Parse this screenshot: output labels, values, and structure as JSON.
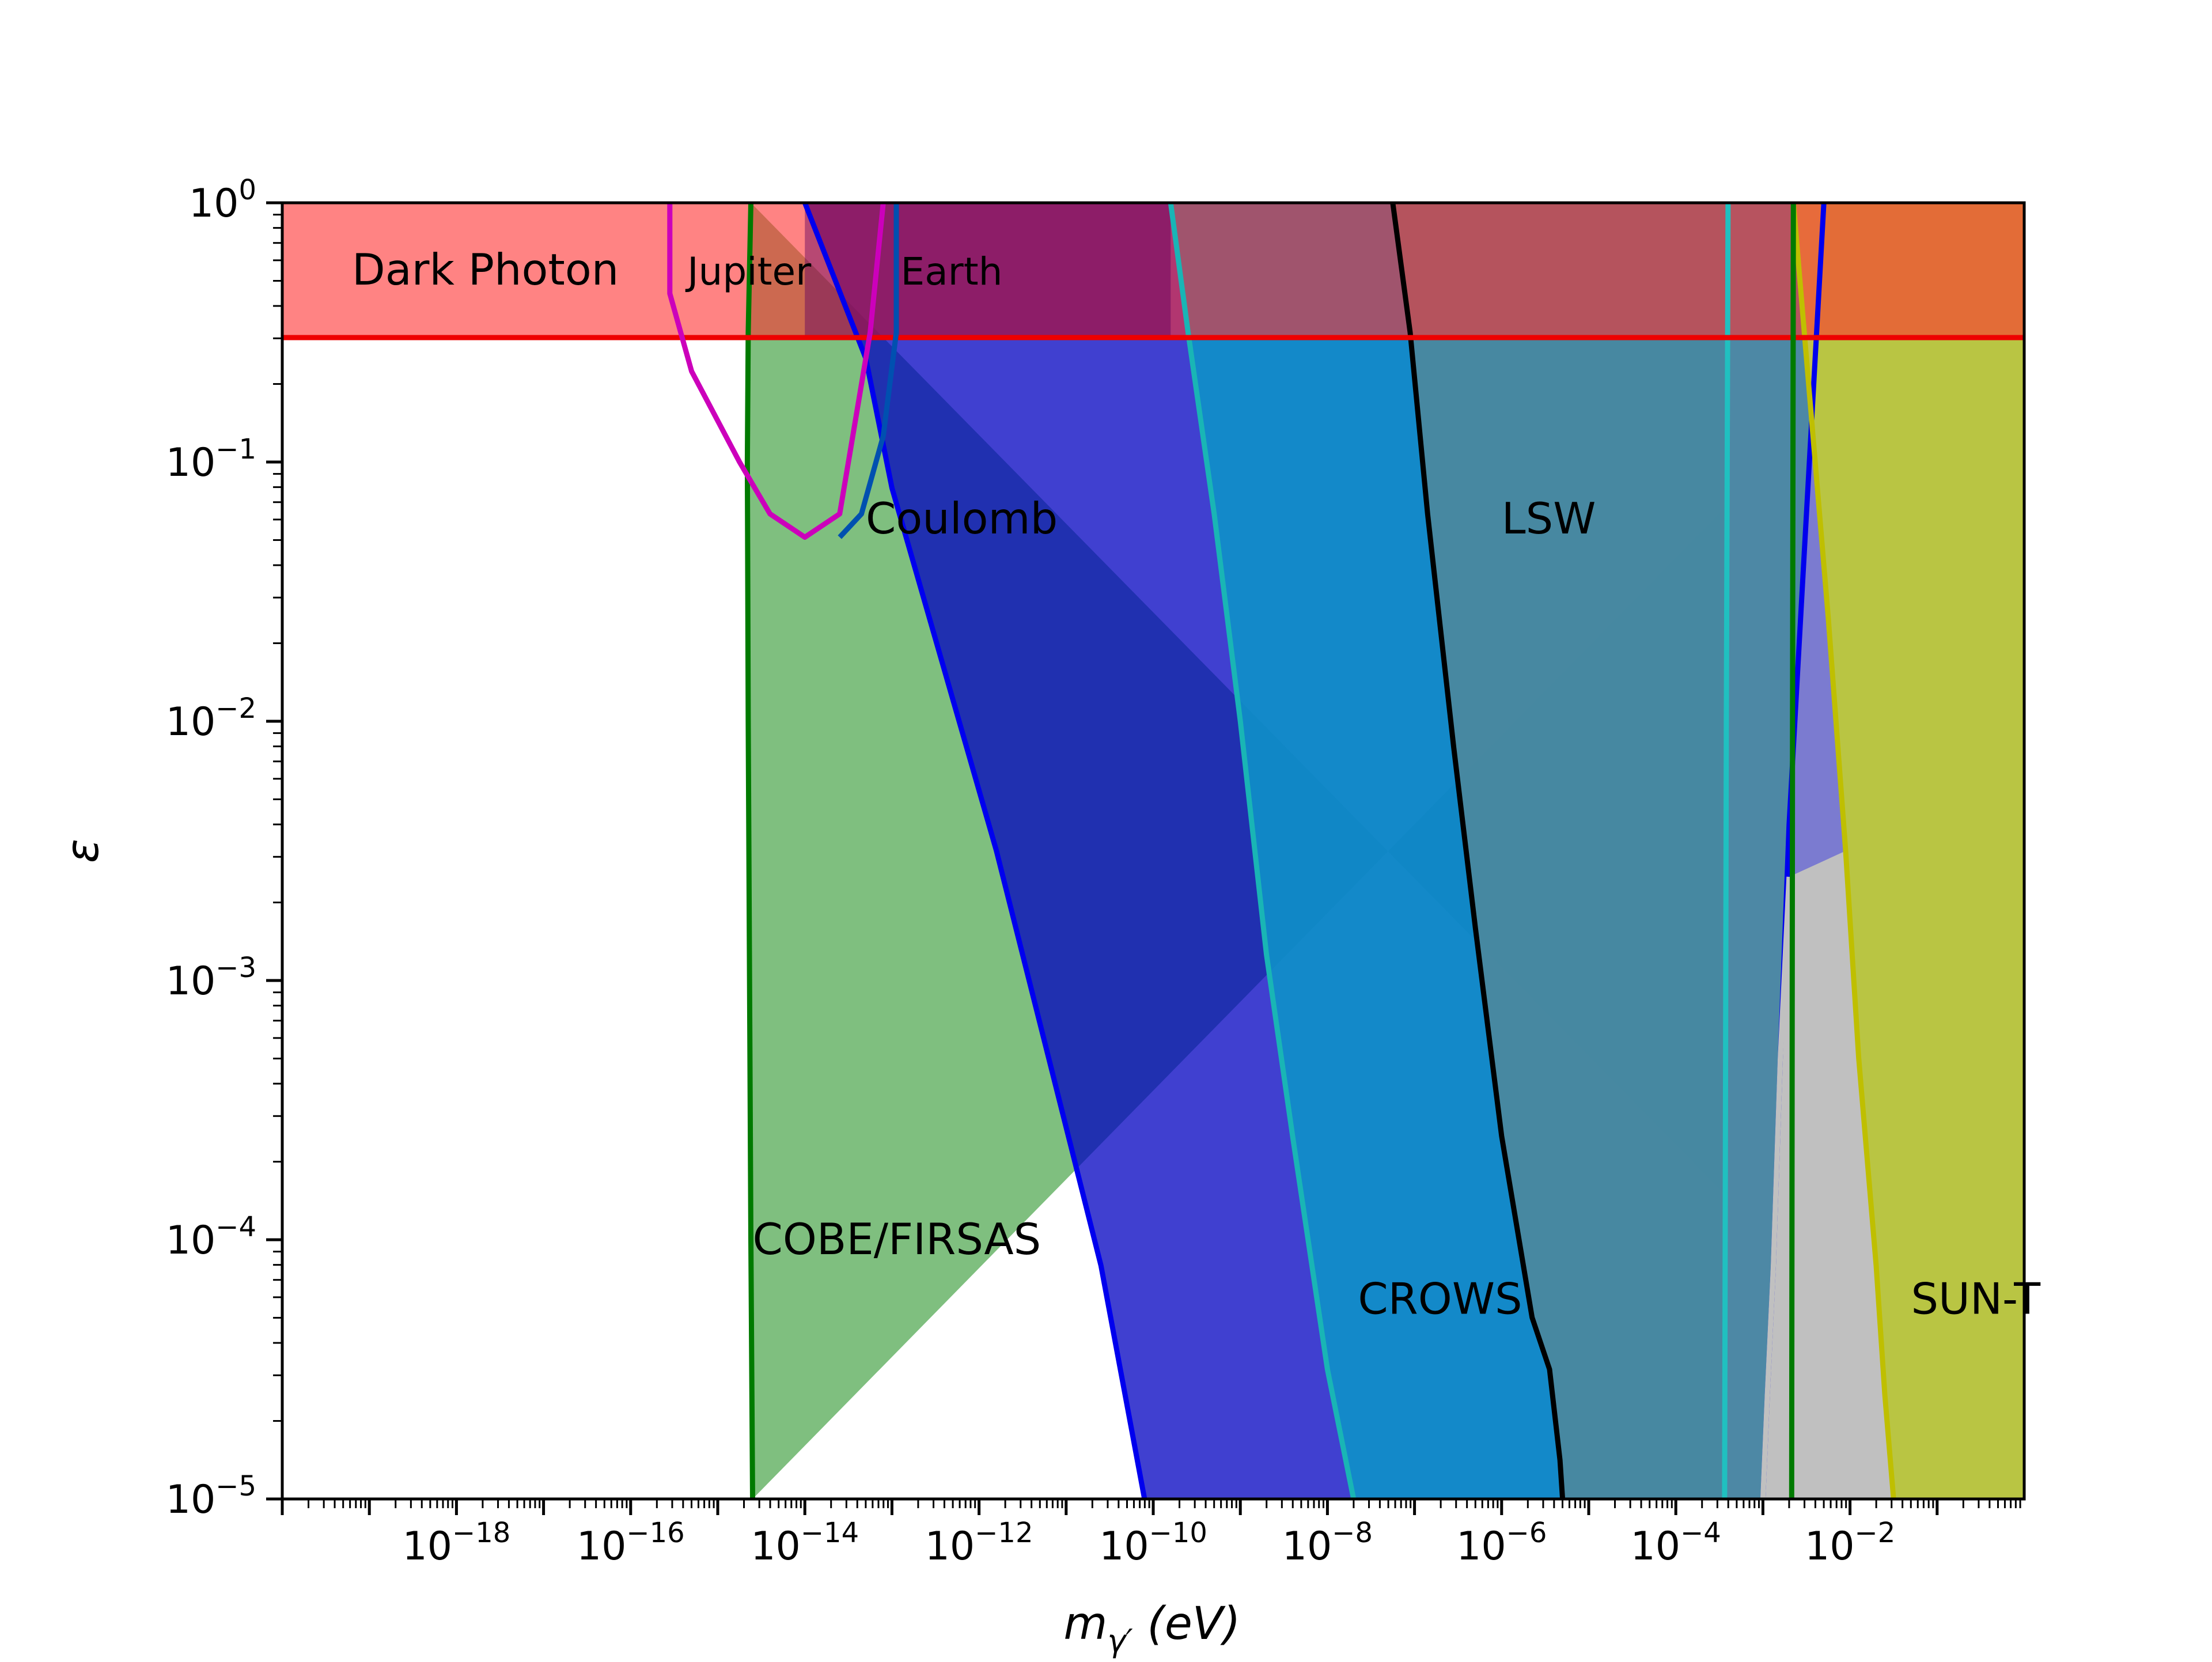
{
  "chart_data": {
    "type": "area",
    "x_axis": {
      "label_main": "m",
      "label_sub": "γ′",
      "label_unit": " (eV)",
      "scale": "log",
      "range_log10": [
        -20,
        0
      ],
      "major_ticks": [
        {
          "base": "10",
          "exp": "−18",
          "log": -18
        },
        {
          "base": "10",
          "exp": "−16",
          "log": -16
        },
        {
          "base": "10",
          "exp": "−14",
          "log": -14
        },
        {
          "base": "10",
          "exp": "−12",
          "log": -12
        },
        {
          "base": "10",
          "exp": "−10",
          "log": -10
        },
        {
          "base": "10",
          "exp": "−8",
          "log": -8
        },
        {
          "base": "10",
          "exp": "−6",
          "log": -6
        },
        {
          "base": "10",
          "exp": "−4",
          "log": -4
        },
        {
          "base": "10",
          "exp": "−2",
          "log": -2
        }
      ]
    },
    "y_axis": {
      "label": "ε",
      "scale": "log",
      "range_log10": [
        -5,
        0
      ],
      "major_ticks": [
        {
          "base": "10",
          "exp": "0",
          "log": 0
        },
        {
          "base": "10",
          "exp": "−1",
          "log": -1
        },
        {
          "base": "10",
          "exp": "−2",
          "log": -2
        },
        {
          "base": "10",
          "exp": "−3",
          "log": -3
        },
        {
          "base": "10",
          "exp": "−4",
          "log": -4
        },
        {
          "base": "10",
          "exp": "−5",
          "log": -5
        }
      ]
    },
    "grid": false,
    "legend": "none",
    "regions": [
      {
        "id": "cobe",
        "label": "COBE/FIRSAS",
        "fill": "#008000",
        "fill_opacity": 0.5,
        "edge": "#007a00",
        "boundary": [
          [
            -14.6,
            -5
          ],
          [
            -14.62,
            -4
          ],
          [
            -14.65,
            -2
          ],
          [
            -14.66,
            -1
          ],
          [
            -14.65,
            -0.5
          ],
          [
            -14.62,
            0
          ]
        ],
        "label_at": [
          -14.6,
          -4.0
        ]
      },
      {
        "id": "coulomb",
        "label": "Coulomb",
        "fill": "#0000c0",
        "fill_opacity": 0.75,
        "edge": "#0000ee",
        "boundary": [
          [
            -14,
            0
          ],
          [
            -13.3,
            -0.6
          ],
          [
            -13,
            -1.1
          ],
          [
            -12.4,
            -1.8
          ],
          [
            -11.8,
            -2.5
          ],
          [
            -11.2,
            -3.3
          ],
          [
            -10.6,
            -4.1
          ],
          [
            -10.1,
            -5
          ]
        ],
        "label_at": [
          -13.3,
          -1.22
        ]
      },
      {
        "id": "crows",
        "label": "CROWS",
        "fill": "#0f8fc8",
        "fill_opacity": 0.92,
        "edge": "#19b5b5",
        "boundary": [
          [
            -9.8,
            0
          ],
          [
            -9.6,
            -0.5
          ],
          [
            -9.3,
            -1.2
          ],
          [
            -9,
            -2
          ],
          [
            -8.7,
            -2.9
          ],
          [
            -8.4,
            -3.6
          ],
          [
            -8.0,
            -4.5
          ],
          [
            -7.7,
            -5
          ]
        ],
        "label_at": [
          -7.65,
          -4.23
        ]
      },
      {
        "id": "lsw",
        "label": "LSW",
        "fill": "#4a889f",
        "fill_opacity": 0.95,
        "edge": "#000000",
        "boundary": [
          [
            -7.25,
            0
          ],
          [
            -7.05,
            -0.5
          ],
          [
            -6.85,
            -1.2
          ],
          [
            -6.55,
            -2.1
          ],
          [
            -6.3,
            -2.8
          ],
          [
            -6.0,
            -3.6
          ],
          [
            -5.65,
            -4.3
          ],
          [
            -5.45,
            -4.5
          ],
          [
            -5.33,
            -4.85
          ],
          [
            -5.3,
            -5
          ]
        ],
        "label_at": [
          -6.0,
          -1.22
        ]
      },
      {
        "id": "cyan_band",
        "label": "",
        "fill": "#4e88a5",
        "fill_opacity": 0.95,
        "edge": "#20c0c0",
        "boundary": [
          [
            -3.4,
            0
          ],
          [
            -3.42,
            -2
          ],
          [
            -3.44,
            -5
          ]
        ],
        "label_at": null
      },
      {
        "id": "purple_band",
        "label": "",
        "fill": "#7b7bd0",
        "fill_opacity": 1,
        "edge": "#0000ee",
        "boundary": [
          [
            -2.3,
            0
          ],
          [
            -2.4,
            -0.6
          ],
          [
            -2.55,
            -1.5
          ],
          [
            -2.7,
            -2.4
          ],
          [
            -2.8,
            -3.3
          ],
          [
            -2.88,
            -4.1
          ],
          [
            -2.95,
            -4.6
          ],
          [
            -3,
            -5
          ]
        ],
        "label_at": null
      },
      {
        "id": "grey_band",
        "label": "",
        "fill": "#c0c0c0",
        "fill_opacity": 1,
        "edge": "#c0c0c0",
        "boundary": [
          [
            -2.7,
            -2.6
          ],
          [
            -2.8,
            -3.3
          ],
          [
            -2.88,
            -4.1
          ],
          [
            -2.95,
            -4.6
          ],
          [
            -3,
            -5
          ]
        ],
        "label_at": null
      },
      {
        "id": "sunt",
        "label": "SUN-T",
        "fill": "#d4d42a",
        "fill_opacity": 0.8,
        "edge": "#bfbf00",
        "boundary": [
          [
            -2.65,
            0
          ],
          [
            -2.5,
            -0.6
          ],
          [
            -2.25,
            -1.6
          ],
          [
            -2.05,
            -2.5
          ],
          [
            -1.9,
            -3.3
          ],
          [
            -1.7,
            -4.1
          ],
          [
            -1.6,
            -4.6
          ],
          [
            -1.5,
            -5
          ]
        ],
        "label_at": [
          -1.3,
          -4.23
        ]
      },
      {
        "id": "dark_photon",
        "label": "Dark Photon",
        "fill": "#ff3030",
        "fill_opacity": 0.6,
        "edge": "#ee0000",
        "boundary": [
          [
            -20,
            -0.52
          ],
          [
            0,
            -0.52
          ]
        ],
        "label_at": [
          -19.2,
          -0.26
        ]
      },
      {
        "id": "jupiter",
        "label": "Jupiter",
        "fill": "#cc00cc",
        "fill_opacity": 0,
        "edge": "#cc00bb",
        "boundary": [
          [
            -15.55,
            0
          ],
          [
            -15.55,
            -0.35
          ],
          [
            -15.3,
            -0.65
          ],
          [
            -14.75,
            -1.0
          ],
          [
            -14.4,
            -1.2
          ],
          [
            -14.0,
            -1.29
          ],
          [
            -13.6,
            -1.2
          ],
          [
            -13.45,
            -0.9
          ],
          [
            -13.25,
            -0.5
          ],
          [
            -13.1,
            0
          ]
        ],
        "label_at": [
          -15.35,
          -0.26
        ]
      },
      {
        "id": "earth",
        "label": "Earth",
        "fill": "#800080",
        "fill_opacity": 0,
        "edge": "#0050b0",
        "boundary": [
          [
            -12.95,
            0
          ],
          [
            -12.95,
            -0.5
          ],
          [
            -13.1,
            -0.9
          ],
          [
            -13.35,
            -1.2
          ],
          [
            -13.6,
            -1.29
          ]
        ],
        "label_at": [
          -12.9,
          -0.26
        ]
      },
      {
        "id": "green_edge",
        "label": "",
        "fill": "#008000",
        "fill_opacity": 0,
        "edge": "#007a00",
        "boundary": [
          [
            -2.65,
            0
          ],
          [
            -2.66,
            -2
          ],
          [
            -2.67,
            -5
          ]
        ],
        "label_at": null
      }
    ],
    "top_tint": {
      "fill": "#600060",
      "fill_opacity": 0.45,
      "x_log": [
        -14.0,
        -9.8
      ]
    }
  }
}
